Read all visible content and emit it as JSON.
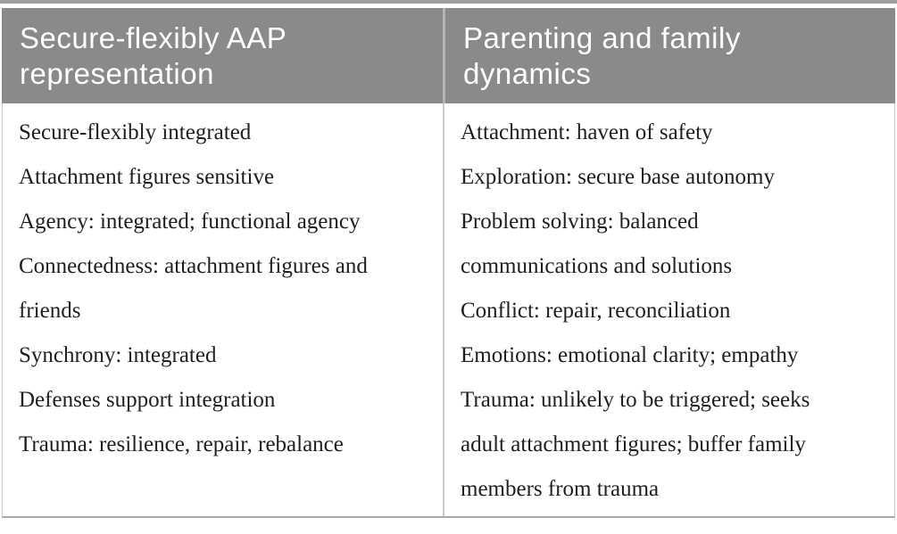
{
  "table": {
    "columns": [
      {
        "header": "Secure-flexibly AAP\nrepresentation",
        "entries": [
          "Secure-flexibly integrated",
          "Attachment figures sensitive",
          "Agency: integrated; functional agency",
          "Connectedness: attachment figures and\nfriends",
          "Synchrony: integrated",
          "Defenses support integration",
          "Trauma: resilience, repair, rebalance"
        ]
      },
      {
        "header": "Parenting and family\ndynamics",
        "entries": [
          "Attachment: haven of safety",
          "Exploration: secure base autonomy",
          "Problem solving: balanced\ncommunications and solutions",
          "Conflict: repair, reconciliation",
          "Emotions: emotional clarity; empathy",
          "Trauma: unlikely to be triggered; seeks\nadult attachment figures; buffer family\nmembers from trauma"
        ]
      }
    ]
  },
  "colors": {
    "header_background": "#8a8a8a",
    "header_text": "#ffffff",
    "header_divider": "#b5b5b5",
    "body_border": "#c9c9c9",
    "top_rule": "#9e9e9e",
    "bottom_rule": "#a8a8a8",
    "body_text": "#1e1e1e"
  }
}
